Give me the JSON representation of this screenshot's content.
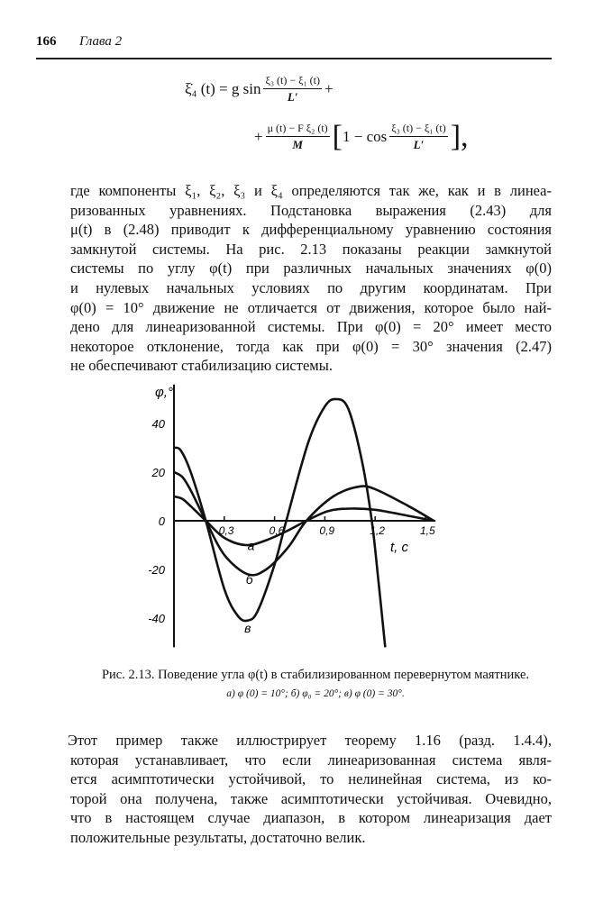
{
  "header": {
    "page_number": "166",
    "chapter": "Глава 2"
  },
  "equation": {
    "lhs": "ξ̇₄ (t) = g sin",
    "frac1_num": "ξ₃ (t) − ξ₁ (t)",
    "frac1_den": "L′",
    "plus1": "+",
    "plus2": "+",
    "frac2_num": "μ (t) − F ξ₂ (t)",
    "frac2_den": "M",
    "bracket_open": "[",
    "one_minus_cos": "1 − cos",
    "frac3_num": "ξ₃ (t) − ξ₁ (t)",
    "frac3_den": "L′",
    "bracket_close": "],"
  },
  "paragraph1": [
    "где компоненты ξ₁, ξ₂, ξ₃ и ξ₄ определяются так же, как и в линеа-",
    "ризованных уравнениях. Подстановка выражения (2.43) для",
    "μ(t) в (2.48) приводит к дифференциальному уравнению состояния",
    "замкнутой системы. На рис. 2.13 показаны реакции замкнутой",
    "системы по углу φ(t) при различных начальных значениях φ(0)",
    "и нулевых начальных условиях по другим координатам. При",
    "φ(0) = 10° движение не отличается от движения, которое было най-",
    "дено для линеаризованной системы. При φ(0) = 20° имеет место",
    "некоторое отклонение, тогда как при φ(0) = 30° значения (2.47)",
    "не обеспечивают стабилизацию системы."
  ],
  "chart_data": {
    "type": "line",
    "xlabel": "t, c",
    "ylabel": "φ,°",
    "xlim": [
      0,
      1.56
    ],
    "ylim": [
      -52,
      56
    ],
    "x_ticks": [
      0.3,
      0.6,
      0.9,
      1.2,
      1.5
    ],
    "x_tick_labels": [
      "0,3",
      "0,6",
      "0,9",
      "1,2",
      "1,5"
    ],
    "y_ticks": [
      40,
      20,
      0,
      -20,
      -40
    ],
    "y_tick_labels": [
      "40",
      "20",
      "0",
      "-20",
      "-40"
    ],
    "grid": false,
    "series": [
      {
        "name": "а",
        "label_at": [
          0.46,
          -12
        ],
        "points": [
          [
            0,
            10
          ],
          [
            0.05,
            9
          ],
          [
            0.1,
            6
          ],
          [
            0.19,
            0
          ],
          [
            0.3,
            -7
          ],
          [
            0.43,
            -10
          ],
          [
            0.55,
            -8
          ],
          [
            0.68,
            -4
          ],
          [
            0.79,
            0
          ],
          [
            0.92,
            4
          ],
          [
            1.05,
            5
          ],
          [
            1.2,
            4.5
          ],
          [
            1.4,
            2
          ],
          [
            1.55,
            0
          ]
        ]
      },
      {
        "name": "б",
        "label_at": [
          0.45,
          -26
        ],
        "points": [
          [
            0,
            20
          ],
          [
            0.05,
            18
          ],
          [
            0.1,
            12.5
          ],
          [
            0.19,
            0
          ],
          [
            0.3,
            -14
          ],
          [
            0.44,
            -22
          ],
          [
            0.55,
            -20
          ],
          [
            0.68,
            -11
          ],
          [
            0.79,
            0
          ],
          [
            0.95,
            10
          ],
          [
            1.1,
            14
          ],
          [
            1.2,
            13
          ],
          [
            1.4,
            6
          ],
          [
            1.55,
            0
          ]
        ]
      },
      {
        "name": "в",
        "label_at": [
          0.44,
          -46
        ],
        "points": [
          [
            0,
            30
          ],
          [
            0.04,
            29
          ],
          [
            0.1,
            20
          ],
          [
            0.19,
            0
          ],
          [
            0.3,
            -28
          ],
          [
            0.38,
            -39
          ],
          [
            0.44,
            -41
          ],
          [
            0.5,
            -37
          ],
          [
            0.6,
            -18
          ],
          [
            0.67,
            0
          ],
          [
            0.8,
            32
          ],
          [
            0.9,
            47
          ],
          [
            0.97,
            50
          ],
          [
            1.04,
            46
          ],
          [
            1.12,
            25
          ],
          [
            1.18,
            0
          ],
          [
            1.22,
            -25
          ],
          [
            1.26,
            -52
          ]
        ]
      }
    ]
  },
  "caption": {
    "main": "Рис. 2.13. Поведение угла φ(t) в стабилизированном перевернутом маятнике.",
    "sub": "а) φ (0) = 10°;  б) φ₀ = 20°;  в) φ (0) = 30°."
  },
  "paragraph2": [
    "Этот пример также иллюстрирует теорему 1.16 (разд. 1.4.4),",
    "которая устанавливает, что если линеаризованная система явля-",
    "ется асимптотически устойчивой, то нелинейная система, из ко-",
    "торой она получена, также асимптотически устойчивая. Очевидно,",
    "что в настоящем случае диапазон, в котором линеаризация дает",
    "положительные результаты, достаточно велик."
  ]
}
